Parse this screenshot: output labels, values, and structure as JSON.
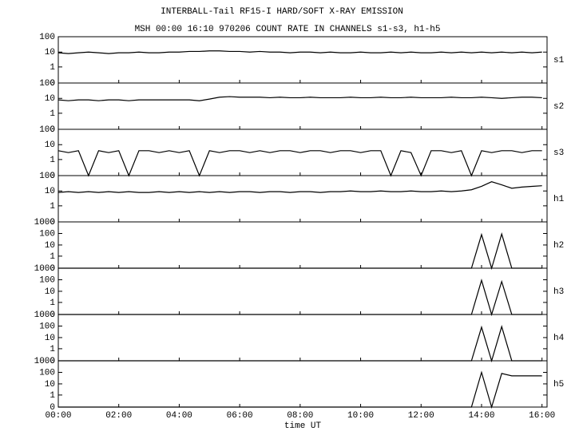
{
  "chart_data": {
    "type": "line",
    "title": "INTERBALL-Tail RF15-I HARD/SOFT X-RAY EMISSION",
    "subtitle": "MSH 00:00 16:10 970206  COUNT RATE IN CHANNELS s1-s3, h1-h5",
    "x_label": "time UT",
    "xlim": [
      0,
      970
    ],
    "xticks": [
      {
        "value": 0,
        "label": "00:00"
      },
      {
        "value": 120,
        "label": "02:00"
      },
      {
        "value": 240,
        "label": "04:00"
      },
      {
        "value": 360,
        "label": "06:00"
      },
      {
        "value": 480,
        "label": "08:00"
      },
      {
        "value": 600,
        "label": "10:00"
      },
      {
        "value": 720,
        "label": "12:00"
      },
      {
        "value": 840,
        "label": "14:00"
      },
      {
        "value": 960,
        "label": "16:00"
      }
    ],
    "x": [
      0,
      20,
      40,
      60,
      80,
      100,
      120,
      140,
      160,
      180,
      200,
      220,
      240,
      260,
      280,
      300,
      320,
      340,
      360,
      380,
      400,
      420,
      440,
      460,
      480,
      500,
      520,
      540,
      560,
      580,
      600,
      620,
      640,
      660,
      680,
      700,
      720,
      740,
      760,
      780,
      800,
      820,
      840,
      860,
      880,
      900,
      920,
      940,
      960
    ],
    "yscale": "log",
    "series": [
      {
        "name": "s1",
        "color": "#000000",
        "ylim": [
          0,
          100
        ],
        "yticks": [
          0,
          1,
          10,
          100
        ],
        "values": [
          9,
          8,
          9,
          10,
          9,
          8,
          9,
          9,
          10,
          9,
          9,
          10,
          10,
          11,
          11,
          12,
          12,
          11,
          11,
          10,
          11,
          10,
          10,
          9,
          10,
          10,
          9,
          10,
          9,
          9,
          10,
          9,
          9,
          10,
          9,
          10,
          9,
          9,
          10,
          9,
          10,
          9,
          10,
          9,
          10,
          9,
          10,
          9,
          10
        ]
      },
      {
        "name": "s2",
        "color": "#000000",
        "ylim": [
          0,
          100
        ],
        "yticks": [
          0,
          1,
          10,
          100
        ],
        "values": [
          8,
          7,
          8,
          8,
          7,
          8,
          8,
          7,
          8,
          8,
          8,
          8,
          8,
          8,
          7,
          9,
          12,
          13,
          12,
          12,
          12,
          11,
          12,
          11,
          11,
          12,
          11,
          11,
          11,
          12,
          11,
          11,
          12,
          11,
          11,
          12,
          11,
          11,
          11,
          12,
          11,
          11,
          12,
          11,
          10,
          11,
          12,
          12,
          11
        ]
      },
      {
        "name": "s3",
        "color": "#000000",
        "ylim": [
          0,
          100
        ],
        "yticks": [
          0,
          1,
          10,
          100
        ],
        "values": [
          4,
          3,
          4,
          0,
          4,
          3,
          4,
          0,
          4,
          4,
          3,
          4,
          3,
          4,
          0,
          4,
          3,
          4,
          4,
          3,
          4,
          3,
          4,
          4,
          3,
          4,
          4,
          3,
          4,
          4,
          3,
          4,
          4,
          0,
          4,
          3,
          0,
          4,
          4,
          3,
          4,
          0,
          4,
          3,
          4,
          4,
          3,
          4,
          4
        ]
      },
      {
        "name": "h1",
        "color": "#000000",
        "ylim": [
          0,
          100
        ],
        "yticks": [
          0,
          1,
          10,
          100
        ],
        "values": [
          8,
          9,
          8,
          9,
          8,
          9,
          8,
          9,
          8,
          8,
          9,
          8,
          9,
          8,
          9,
          8,
          9,
          8,
          9,
          9,
          8,
          9,
          9,
          8,
          9,
          9,
          8,
          9,
          9,
          10,
          9,
          9,
          10,
          9,
          9,
          10,
          9,
          9,
          10,
          9,
          10,
          12,
          20,
          40,
          25,
          15,
          18,
          20,
          22
        ]
      },
      {
        "name": "h2",
        "color": "#000000",
        "ylim": [
          0,
          1000
        ],
        "yticks": [
          0,
          1,
          10,
          100,
          1000
        ],
        "values": [
          0,
          0,
          0,
          0,
          0,
          0,
          0,
          0,
          0,
          0,
          0,
          0,
          0,
          0,
          0,
          0,
          0,
          0,
          0,
          0,
          0,
          0,
          0,
          0,
          0,
          0,
          0,
          0,
          0,
          0,
          0,
          0,
          0,
          0,
          0,
          0,
          0,
          0,
          0,
          0,
          0,
          0,
          80,
          0,
          90,
          0,
          0,
          0,
          0
        ]
      },
      {
        "name": "h3",
        "color": "#000000",
        "ylim": [
          0,
          1000
        ],
        "yticks": [
          0,
          1,
          10,
          100,
          1000
        ],
        "values": [
          0,
          0,
          0,
          0,
          0,
          0,
          0,
          0,
          0,
          0,
          0,
          0,
          0,
          0,
          0,
          0,
          0,
          0,
          0,
          0,
          0,
          0,
          0,
          0,
          0,
          0,
          0,
          0,
          0,
          0,
          0,
          0,
          0,
          0,
          0,
          0,
          0,
          0,
          0,
          0,
          0,
          0,
          90,
          0,
          70,
          0,
          0,
          0,
          0
        ]
      },
      {
        "name": "h4",
        "color": "#000000",
        "ylim": [
          0,
          1000
        ],
        "yticks": [
          0,
          1,
          10,
          100,
          1000
        ],
        "values": [
          0,
          0,
          0,
          0,
          0,
          0,
          0,
          0,
          0,
          0,
          0,
          0,
          0,
          0,
          0,
          0,
          0,
          0,
          0,
          0,
          0,
          0,
          0,
          0,
          0,
          0,
          0,
          0,
          0,
          0,
          0,
          0,
          0,
          0,
          0,
          0,
          0,
          0,
          0,
          0,
          0,
          0,
          80,
          0,
          90,
          0,
          0,
          0,
          0
        ]
      },
      {
        "name": "h5",
        "color": "#000000",
        "ylim": [
          0,
          1000
        ],
        "yticks": [
          0,
          1,
          10,
          100,
          1000
        ],
        "values": [
          0,
          0,
          0,
          0,
          0,
          0,
          0,
          0,
          0,
          0,
          0,
          0,
          0,
          0,
          0,
          0,
          0,
          0,
          0,
          0,
          0,
          0,
          0,
          0,
          0,
          0,
          0,
          0,
          0,
          0,
          0,
          0,
          0,
          0,
          0,
          0,
          0,
          0,
          0,
          0,
          0,
          0,
          100,
          0,
          80,
          50,
          50,
          50,
          50
        ]
      }
    ]
  }
}
